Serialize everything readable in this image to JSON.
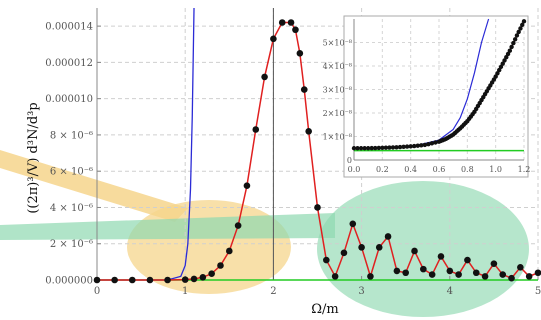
{
  "chart_data": {
    "type": "line",
    "title": "",
    "xlabel": "Ω/m",
    "ylabel": "((2π)³/V) d³N/d³p",
    "xlim": [
      0,
      5
    ],
    "ylim": [
      0,
      1.5e-05
    ],
    "x_ticks": [
      "0",
      "1",
      "2",
      "3",
      "4",
      "5"
    ],
    "y_ticks": [
      "0.000000",
      "2 × 10⁻⁶",
      "4 × 10⁻⁶",
      "6 × 10⁻⁶",
      "8 × 10⁻⁶",
      "0.000010",
      "0.000012",
      "0.000014"
    ],
    "y_tick_values": [
      0,
      2e-06,
      4e-06,
      6e-06,
      8e-06,
      1e-05,
      1.2e-05,
      1.4e-05
    ],
    "vertical_line_x": 2,
    "grid": true,
    "colors": {
      "exact": "#111111",
      "fit": "#e02020",
      "blue": "#2b2bd6",
      "green": "#22cc22",
      "highlight_orange": "#f6d58c",
      "highlight_green": "#8fd8b0"
    },
    "series": [
      {
        "marker": "dot",
        "x": [
          0.0,
          0.2,
          0.4,
          0.6,
          0.8,
          1.0,
          1.1,
          1.2,
          1.3,
          1.4,
          1.5,
          1.6,
          1.7,
          1.8,
          1.9,
          2.0,
          2.1,
          2.2,
          2.25,
          2.3,
          2.35,
          2.4,
          2.5,
          2.6,
          2.7,
          2.8,
          2.9,
          3.0,
          3.1,
          3.2,
          3.3,
          3.4,
          3.5,
          3.6,
          3.7,
          3.8,
          3.9,
          4.0,
          4.1,
          4.2,
          4.3,
          4.4,
          4.5,
          4.6,
          4.7,
          4.8,
          4.9,
          5.0
        ],
        "values": [
          0,
          0,
          0,
          0,
          0,
          2e-08,
          6e-08,
          1.5e-07,
          3.5e-07,
          8e-07,
          1.6e-06,
          3e-06,
          5.2e-06,
          8.3e-06,
          1.12e-05,
          1.33e-05,
          1.42e-05,
          1.42e-05,
          1.38e-05,
          1.25e-05,
          1.05e-05,
          8.2e-06,
          4e-06,
          1.1e-06,
          2e-07,
          1.5e-06,
          3.1e-06,
          1.8e-06,
          2e-07,
          1.8e-06,
          2.4e-06,
          5e-07,
          4e-07,
          1.6e-06,
          6e-07,
          3e-07,
          1.3e-06,
          5e-07,
          3e-07,
          1.1e-06,
          4e-07,
          2e-07,
          9e-07,
          3e-07,
          1e-07,
          7e-07,
          2e-07,
          4e-07
        ]
      },
      {
        "x": [
          0.0,
          0.8,
          0.95,
          1.0,
          1.03,
          1.06,
          1.08,
          1.1
        ],
        "values": [
          0,
          0,
          2e-07,
          8e-07,
          2e-06,
          5e-06,
          9e-06,
          1.5e-05
        ]
      },
      {
        "x": [
          0.0,
          5.0
        ],
        "values": [
          0,
          0
        ]
      }
    ],
    "inset": {
      "xlim": [
        0,
        1.2
      ],
      "ylim": [
        0,
        6e-08
      ],
      "x_ticks": [
        "0.0",
        "0.2",
        "0.4",
        "0.6",
        "0.8",
        "1.0",
        "1.2"
      ],
      "y_ticks": [
        "0",
        "1×10⁻⁸",
        "2×10⁻⁸",
        "3×10⁻⁸",
        "4×10⁻⁸",
        "5×10⁻⁸"
      ],
      "y_tick_values": [
        0,
        1e-08,
        2e-08,
        3e-08,
        4e-08,
        5e-08
      ],
      "series": [
        {
          "marker": "dot",
          "x": [
            0.0,
            0.1,
            0.2,
            0.3,
            0.4,
            0.5,
            0.6,
            0.65,
            0.7,
            0.75,
            0.8,
            0.85,
            0.9,
            0.95,
            1.0,
            1.05,
            1.1,
            1.15,
            1.2
          ],
          "values": [
            5e-09,
            5e-09,
            5.2e-09,
            5.4e-09,
            5.8e-09,
            6.4e-09,
            7.8e-09,
            9e-09,
            1.08e-08,
            1.35e-08,
            1.65e-08,
            2.05e-08,
            2.55e-08,
            3.05e-08,
            3.55e-08,
            4.1e-08,
            4.65e-08,
            5.3e-08,
            5.9e-08
          ]
        },
        {
          "x": [
            0.0,
            0.4,
            0.6,
            0.7,
            0.75,
            0.8,
            0.85,
            0.9,
            0.95
          ],
          "values": [
            5e-09,
            5.6e-09,
            8.5e-09,
            1.3e-08,
            1.8e-08,
            2.6e-08,
            3.7e-08,
            5e-08,
            6e-08
          ]
        },
        {
          "x": [
            0.0,
            1.2
          ],
          "values": [
            4e-09,
            4e-09
          ]
        }
      ]
    }
  }
}
